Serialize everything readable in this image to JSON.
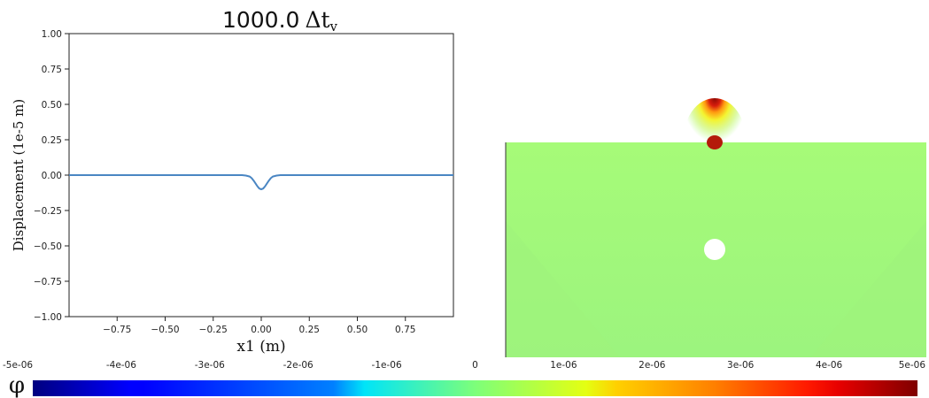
{
  "chart_data": [
    {
      "type": "line",
      "title_value": "1000.0",
      "title_symbol": "Δt",
      "title_subscript": "v",
      "xlabel": "x1 (m)",
      "ylabel": "Displacement (1e-5 m)",
      "xlim": [
        -1.0,
        1.0
      ],
      "ylim": [
        -1.0,
        1.0
      ],
      "xticks": [
        "−0.75",
        "−0.50",
        "−0.25",
        "0.00",
        "0.25",
        "0.50",
        "0.75"
      ],
      "yticks": [
        "1.00",
        "0.75",
        "0.50",
        "0.25",
        "0.00",
        "−0.25",
        "−0.50",
        "−0.75",
        "−1.00"
      ],
      "grid": false,
      "series": [
        {
          "color": "#4a86c3",
          "x": [
            -1.0,
            -0.5,
            -0.2,
            -0.1,
            -0.08,
            -0.06,
            -0.05,
            -0.04,
            -0.03,
            -0.02,
            -0.01,
            0.0,
            0.01,
            0.02,
            0.03,
            0.04,
            0.05,
            0.06,
            0.08,
            0.1,
            0.2,
            0.5,
            1.0
          ],
          "y": [
            0.0,
            0.0,
            0.0,
            0.0,
            -0.003,
            -0.01,
            -0.021,
            -0.038,
            -0.058,
            -0.079,
            -0.095,
            -0.1,
            -0.095,
            -0.079,
            -0.058,
            -0.038,
            -0.021,
            -0.01,
            -0.003,
            0.0,
            0.0,
            0.0,
            0.0
          ]
        }
      ]
    },
    {
      "type": "heatmap",
      "colormap": "jet",
      "background_color": "#a6fb78",
      "hotspot_color": "#b41a0a",
      "hole_color": "#ffffff",
      "colorbar": {
        "symbol": "φ",
        "range": [
          -5e-06,
          5e-06
        ],
        "ticks": [
          "-5e-06",
          "-4e-06",
          "-3e-06",
          "-2e-06",
          "-1e-06",
          "0",
          "1e-06",
          "2e-06",
          "3e-06",
          "4e-06",
          "5e-06"
        ]
      }
    }
  ]
}
